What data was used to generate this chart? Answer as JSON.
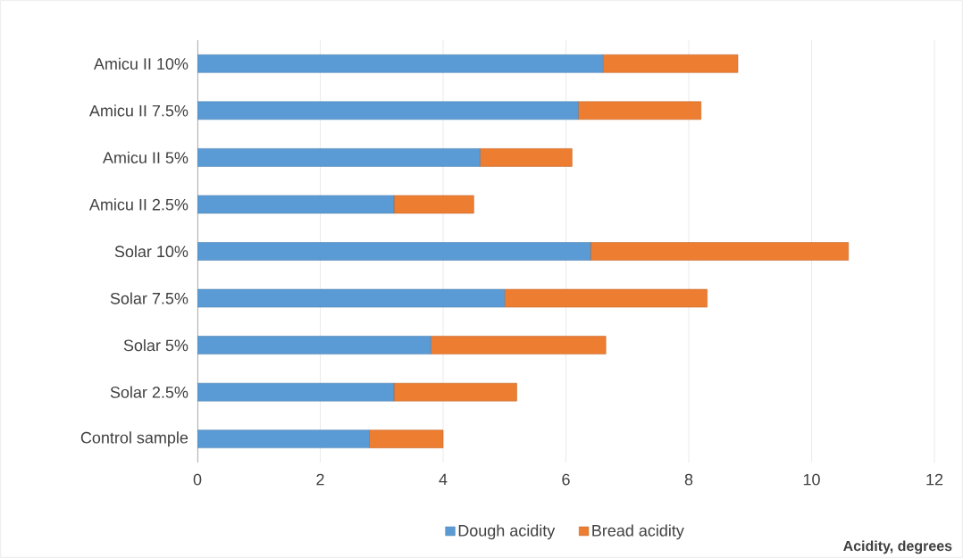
{
  "chart_data": {
    "type": "bar",
    "orientation": "horizontal",
    "stacked": true,
    "xlabel": "Acidity, degrees",
    "categories": [
      "Amicu II 10%",
      "Amicu II 7.5%",
      "Amicu II 5%",
      "Amicu II 2.5%",
      "Solar 10%",
      "Solar 7.5%",
      "Solar 5%",
      "Solar 2.5%",
      "Control sample"
    ],
    "series": [
      {
        "name": "Dough acidity",
        "color": "#5b9bd5",
        "values": [
          6.6,
          6.2,
          4.6,
          3.2,
          6.4,
          5.0,
          3.8,
          3.2,
          2.8
        ]
      },
      {
        "name": "Bread acidity",
        "color": "#ed7d31",
        "values": [
          2.2,
          2.0,
          1.5,
          1.3,
          4.2,
          3.3,
          2.85,
          2.0,
          1.2
        ]
      }
    ],
    "xlim": [
      0,
      12
    ],
    "xticks": [
      0,
      2,
      4,
      6,
      8,
      10,
      12
    ],
    "grid": "x",
    "legend": "bottom"
  }
}
